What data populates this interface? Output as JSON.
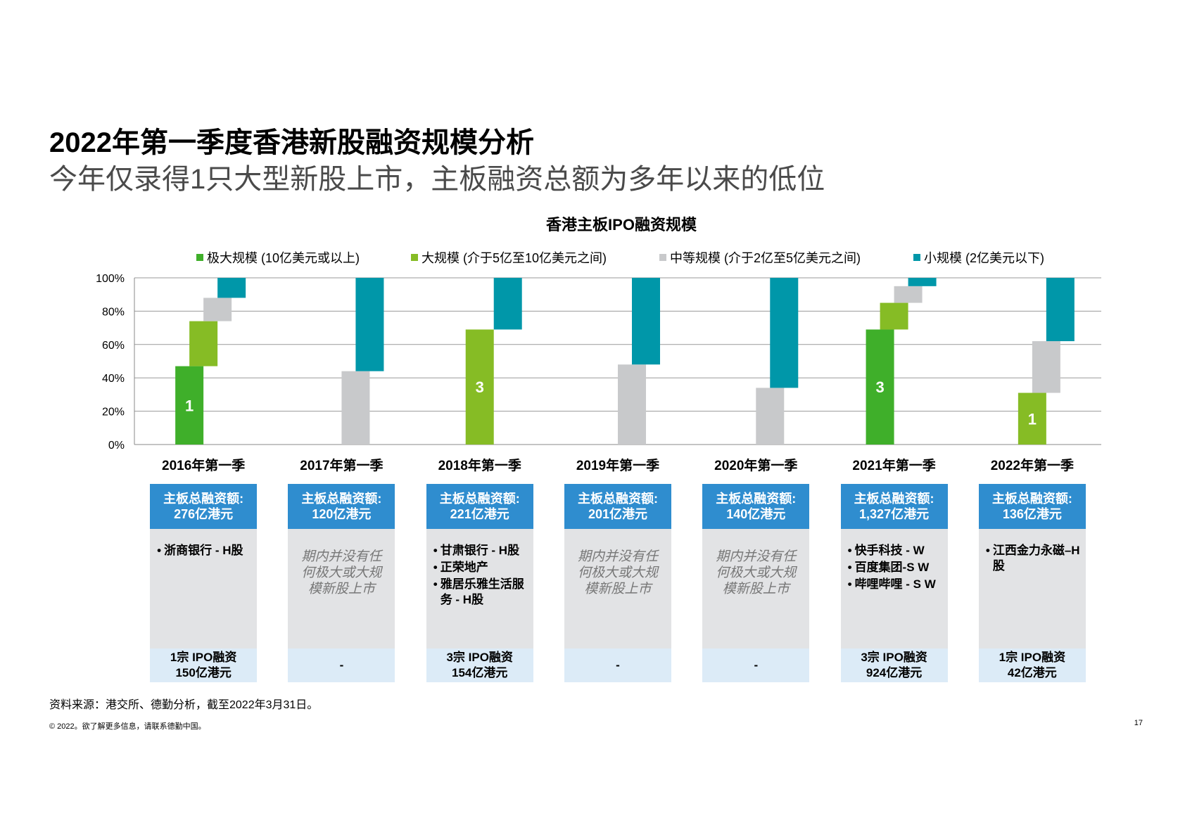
{
  "header": {
    "title": "2022年第一季度香港新股融资规模分析",
    "subtitle": "今年仅录得1只大型新股上市，主板融资总额为多年以来的低位"
  },
  "chart_data": {
    "type": "bar",
    "title": "香港主板IPO融资规模",
    "categories": [
      "2016年第一季",
      "2017年第一季",
      "2018年第一季",
      "2019年第一季",
      "2020年第一季",
      "2021年第一季",
      "2022年第一季"
    ],
    "yticks": [
      "0%",
      "20%",
      "40%",
      "60%",
      "80%",
      "100%"
    ],
    "ylim": [
      0,
      100
    ],
    "series": [
      {
        "name": "极大规模 (10亿美元或以上)",
        "color": "#3faf2a",
        "values": [
          47,
          0,
          0,
          0,
          0,
          69,
          0
        ]
      },
      {
        "name": "大规模 (介于5亿至10亿美元之间)",
        "color": "#86bc25",
        "values": [
          27,
          0,
          69,
          0,
          0,
          16,
          31
        ]
      },
      {
        "name": "中等规模 (介于2亿至5亿美元之间)",
        "color": "#c8c9cb",
        "values": [
          14,
          44,
          0,
          48,
          34,
          10,
          31
        ]
      },
      {
        "name": "小规模 (2亿美元以下)",
        "color": "#0097a9",
        "values": [
          12,
          56,
          31,
          52,
          66,
          5,
          38
        ]
      }
    ],
    "data_labels": [
      {
        "category": "2016年第一季",
        "series": "极大规模 (10亿美元或以上)",
        "text": "1"
      },
      {
        "category": "2018年第一季",
        "series": "大规模 (介于5亿至10亿美元之间)",
        "text": "3"
      },
      {
        "category": "2021年第一季",
        "series": "极大规模 (10亿美元或以上)",
        "text": "3"
      },
      {
        "category": "2022年第一季",
        "series": "大规模 (介于5亿至10亿美元之间)",
        "text": "1"
      }
    ]
  },
  "panels": [
    {
      "head1": "主板总融资额:",
      "head2": "276亿港元",
      "items": [
        "浙商银行 - H股"
      ],
      "none_text": "",
      "foot1": "1宗 IPO融资",
      "foot2": "150亿港元"
    },
    {
      "head1": "主板总融资额:",
      "head2": "120亿港元",
      "items": [],
      "none_text": "期内并没有任何极大或大规模新股上市",
      "foot1": "-",
      "foot2": ""
    },
    {
      "head1": "主板总融资额:",
      "head2": "221亿港元",
      "items": [
        "甘肃银行 - H股",
        "正荣地产",
        "雅居乐雅生活服务 - H股"
      ],
      "none_text": "",
      "foot1": "3宗 IPO融资",
      "foot2": "154亿港元"
    },
    {
      "head1": "主板总融资额:",
      "head2": "201亿港元",
      "items": [],
      "none_text": "期内并没有任何极大或大规模新股上市",
      "foot1": "-",
      "foot2": ""
    },
    {
      "head1": "主板总融资额:",
      "head2": "140亿港元",
      "items": [],
      "none_text": "期内并没有任何极大或大规模新股上市",
      "foot1": "-",
      "foot2": ""
    },
    {
      "head1": "主板总融资额:",
      "head2": "1,327亿港元",
      "items": [
        "快手科技 - W",
        "百度集团-S W",
        "哔哩哔哩 - S W"
      ],
      "none_text": "",
      "foot1": "3宗 IPO融资",
      "foot2": "924亿港元"
    },
    {
      "head1": "主板总融资额:",
      "head2": "136亿港元",
      "items": [
        "江西金力永磁–H股"
      ],
      "none_text": "",
      "foot1": "1宗 IPO融资",
      "foot2": "42亿港元"
    }
  ],
  "footer": {
    "source": "资料来源：港交所、德勤分析，截至2022年3月31日。",
    "copyright": "© 2022。欲了解更多信息，请联系德勤中国。",
    "page_number": "17"
  }
}
